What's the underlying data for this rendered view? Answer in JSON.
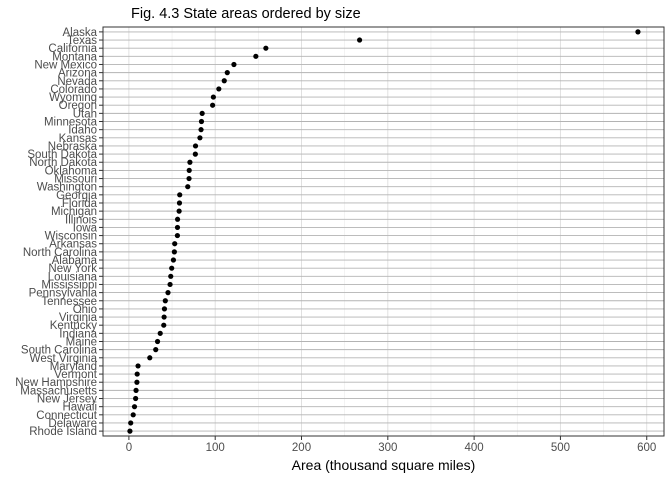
{
  "chart_data": {
    "type": "scatter",
    "title": "Fig. 4.3 State areas ordered by size",
    "xlabel": "Area (thousand square miles)",
    "ylabel": "",
    "xlim": [
      -30,
      620
    ],
    "xticks": [
      0,
      100,
      200,
      300,
      400,
      500,
      600
    ],
    "grid": true,
    "legend": "none",
    "point_color": "#000000",
    "grid_color": "#b3b3b3",
    "categories": [
      "Alaska",
      "Texas",
      "California",
      "Montana",
      "New Mexico",
      "Arizona",
      "Nevada",
      "Colorado",
      "Wyoming",
      "Oregon",
      "Utah",
      "Minnesota",
      "Idaho",
      "Kansas",
      "Nebraska",
      "South Dakota",
      "North Dakota",
      "Oklahoma",
      "Missouri",
      "Washington",
      "Georgia",
      "Florida",
      "Michigan",
      "Illinois",
      "Iowa",
      "Wisconsin",
      "Arkansas",
      "North Carolina",
      "Alabama",
      "New York",
      "Louisiana",
      "Mississippi",
      "Pennsylvania",
      "Tennessee",
      "Ohio",
      "Virginia",
      "Kentucky",
      "Indiana",
      "Maine",
      "South Carolina",
      "West Virginia",
      "Maryland",
      "Vermont",
      "New Hampshire",
      "Massachusetts",
      "New Jersey",
      "Hawaii",
      "Connecticut",
      "Delaware",
      "Rhode Island"
    ],
    "values": [
      589.8,
      267.3,
      158.7,
      147.1,
      121.7,
      114.0,
      110.5,
      104.2,
      97.9,
      97.0,
      84.9,
      84.1,
      83.6,
      82.3,
      77.2,
      77.0,
      70.7,
      69.9,
      69.7,
      68.2,
      58.9,
      58.6,
      58.2,
      56.4,
      56.3,
      56.2,
      53.1,
      52.7,
      51.6,
      49.6,
      48.5,
      47.7,
      45.3,
      42.2,
      41.2,
      40.8,
      40.4,
      36.3,
      33.2,
      31.1,
      24.2,
      10.6,
      9.6,
      9.3,
      8.3,
      7.8,
      6.5,
      5.0,
      2.1,
      1.2
    ]
  }
}
